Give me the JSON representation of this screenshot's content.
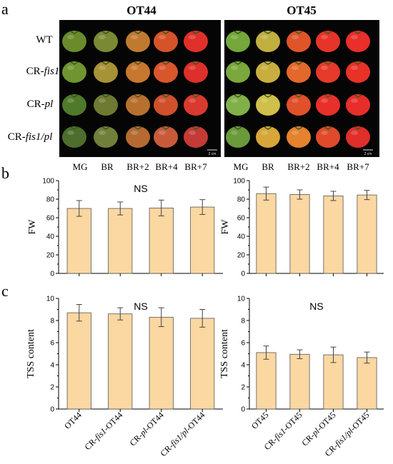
{
  "panel_letters": {
    "a": "a",
    "b": "b",
    "c": "c"
  },
  "photos": {
    "titles": [
      "OT44",
      "OT45"
    ],
    "genotypes": [
      {
        "base": "WT",
        "italic": ""
      },
      {
        "base": "CR-",
        "italic": "fis1"
      },
      {
        "base": "CR-",
        "italic": "pl"
      },
      {
        "base": "CR-",
        "italic": "fis1/pl"
      }
    ],
    "stages": [
      "MG",
      "BR",
      "BR+2",
      "BR+4",
      "BR+7"
    ],
    "scale_bar": "2 cm",
    "colors": {
      "OT44": [
        [
          "#6a8a2c",
          "#7a8a34",
          "#c07a30",
          "#d6532a",
          "#e0302a"
        ],
        [
          "#6f9430",
          "#a79236",
          "#c8782e",
          "#d9552c",
          "#de302a"
        ],
        [
          "#4f7a2a",
          "#6e7a32",
          "#b8702e",
          "#cf502a",
          "#d83a30"
        ],
        [
          "#4d6e2c",
          "#70803a",
          "#b56a32",
          "#c85a3a",
          "#c43a36"
        ]
      ],
      "OT45": [
        [
          "#74a83a",
          "#c0b040",
          "#e0542a",
          "#e6342a",
          "#ea2e2a"
        ],
        [
          "#7aa83c",
          "#c8ae3e",
          "#e2682c",
          "#e63a2a",
          "#e83228"
        ],
        [
          "#82b048",
          "#cec04a",
          "#e0502a",
          "#e8302a",
          "#e82e2a"
        ],
        [
          "#6a9a3a",
          "#d6a638",
          "#e4822e",
          "#e04a2a",
          "#e02e2a"
        ]
      ]
    }
  },
  "chart_data": [
    {
      "id": "b-left",
      "type": "bar",
      "categories": [
        "OT44",
        "CR-fis1-OT44",
        "CR-pl-OT44",
        "CR-fis1/pl-OT44"
      ],
      "values": [
        70,
        70,
        70.5,
        71.5
      ],
      "errors": [
        8.5,
        7,
        8.5,
        8
      ],
      "ylabel": "FW",
      "ylim": [
        0,
        100
      ],
      "yticks": [
        0,
        20,
        40,
        60,
        80,
        100
      ],
      "annotation": "NS",
      "bar_color": "#fbd7a2"
    },
    {
      "id": "b-right",
      "type": "bar",
      "categories": [
        "OT45",
        "CR-fis1-OT45",
        "CR-pl-OT45",
        "CR-fis1/pl-OT45"
      ],
      "values": [
        86,
        85,
        83.5,
        84.5
      ],
      "errors": [
        7,
        5,
        5,
        5
      ],
      "ylabel": "FW",
      "ylim": [
        0,
        100
      ],
      "yticks": [
        0,
        20,
        40,
        60,
        80,
        100
      ],
      "annotation": "",
      "bar_color": "#fbd7a2"
    },
    {
      "id": "c-left",
      "type": "bar",
      "categories": [
        "OT44",
        "CR-fis1-OT44",
        "CR-pl-OT44",
        "CR-fis1/pl-OT44"
      ],
      "values": [
        8.7,
        8.6,
        8.3,
        8.2
      ],
      "errors": [
        0.75,
        0.55,
        0.85,
        0.8
      ],
      "ylabel": "TSS content",
      "ylim": [
        0,
        10
      ],
      "yticks": [
        0,
        2,
        4,
        6,
        8,
        10
      ],
      "annotation": "NS",
      "bar_color": "#fbd7a2"
    },
    {
      "id": "c-right",
      "type": "bar",
      "categories": [
        "OT45",
        "CR-fis1-OT45",
        "CR-pl-OT45",
        "CR-fis1/pl-OT45"
      ],
      "values": [
        5.1,
        4.95,
        4.9,
        4.65
      ],
      "errors": [
        0.6,
        0.4,
        0.7,
        0.5
      ],
      "ylabel": "TSS content",
      "ylim": [
        0,
        10
      ],
      "yticks": [
        0,
        2,
        4,
        6,
        8,
        10
      ],
      "annotation": "NS",
      "bar_color": "#fbd7a2"
    }
  ],
  "xtick_labels": {
    "left": [
      {
        "pre": "OT44",
        "it": "",
        "post": ""
      },
      {
        "pre": "CR-",
        "it": "fis1",
        "post": "-OT44"
      },
      {
        "pre": "CR-",
        "it": "pl",
        "post": "-OT44"
      },
      {
        "pre": "CR-",
        "it": "fis1/pl",
        "post": "-OT44"
      }
    ],
    "right": [
      {
        "pre": "OT45",
        "it": "",
        "post": ""
      },
      {
        "pre": "CR-",
        "it": "fis1",
        "post": "-OT45"
      },
      {
        "pre": "CR-",
        "it": "pl",
        "post": "-OT45"
      },
      {
        "pre": "CR-",
        "it": "fis1/pl",
        "post": "-OT45"
      }
    ]
  }
}
